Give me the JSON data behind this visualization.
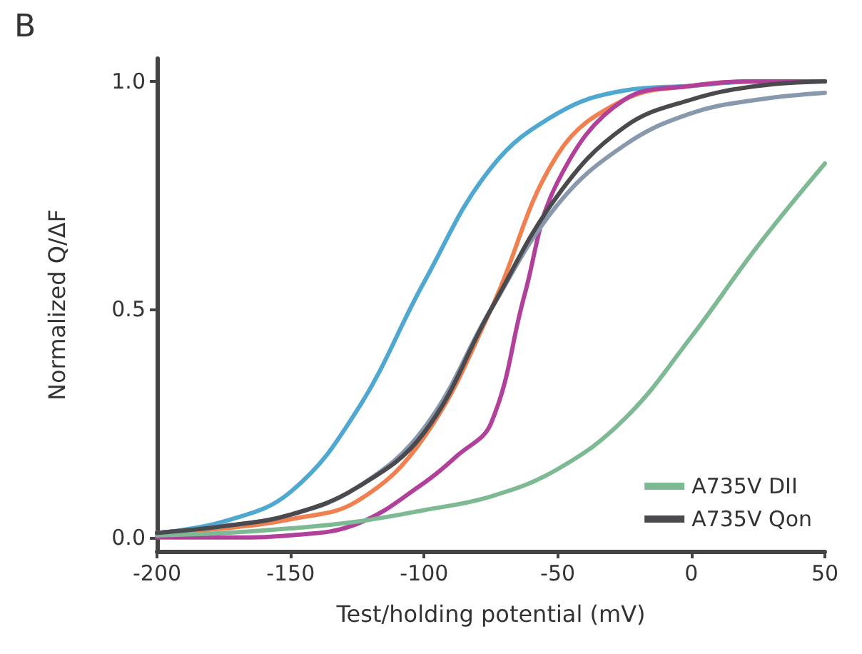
{
  "chart_data": {
    "type": "line",
    "annotations": [
      "B"
    ],
    "xlabel": "Test/holding potential (mV)",
    "ylabel": "Normalized Q/ΔF",
    "x": [
      -200,
      -175,
      -150,
      -125,
      -100,
      -75,
      -50,
      -25,
      0,
      25,
      50
    ],
    "series": [
      {
        "color": "#4fa8d0",
        "values": [
          0.01,
          0.035,
          0.1,
          0.28,
          0.56,
          0.81,
          0.93,
          0.98,
          0.99,
          1.0,
          1.0
        ]
      },
      {
        "color": "#f08050",
        "values": [
          0.01,
          0.02,
          0.04,
          0.08,
          0.22,
          0.5,
          0.84,
          0.96,
          0.99,
          1.0,
          1.0
        ]
      },
      {
        "color": "#b0409a",
        "x": [
          -200,
          -175,
          -150,
          -125,
          -100,
          -87.5,
          -75,
          -62.5,
          -50,
          -25,
          0,
          25,
          50
        ],
        "values": [
          0.0,
          0.0,
          0.005,
          0.03,
          0.12,
          0.18,
          0.25,
          0.53,
          0.78,
          0.96,
          0.99,
          1.0,
          1.0
        ]
      },
      {
        "color": "#8898ad",
        "values": [
          0.01,
          0.025,
          0.05,
          0.11,
          0.24,
          0.5,
          0.73,
          0.86,
          0.93,
          0.96,
          0.975
        ]
      },
      {
        "name": "A735V DII",
        "color": "#7dba94",
        "values": [
          0.005,
          0.01,
          0.02,
          0.035,
          0.06,
          0.09,
          0.15,
          0.26,
          0.44,
          0.64,
          0.82
        ]
      },
      {
        "name": "A735V Qon",
        "color": "#4a4a4e",
        "values": [
          0.01,
          0.025,
          0.05,
          0.11,
          0.23,
          0.5,
          0.75,
          0.9,
          0.96,
          0.99,
          1.0
        ]
      }
    ],
    "xlim": [
      -200,
      50
    ],
    "xticks": [
      -200,
      -150,
      -100,
      -50,
      0,
      50
    ],
    "ylim": [
      -0.03,
      1.05
    ],
    "yticks": [
      {
        "value": 0,
        "label": "0.0"
      },
      {
        "value": 0.5,
        "label": "0.5"
      },
      {
        "value": 1,
        "label": "1.0"
      }
    ],
    "grid": false,
    "legend": "bottom right",
    "marker": "none",
    "line_style": "solid"
  }
}
